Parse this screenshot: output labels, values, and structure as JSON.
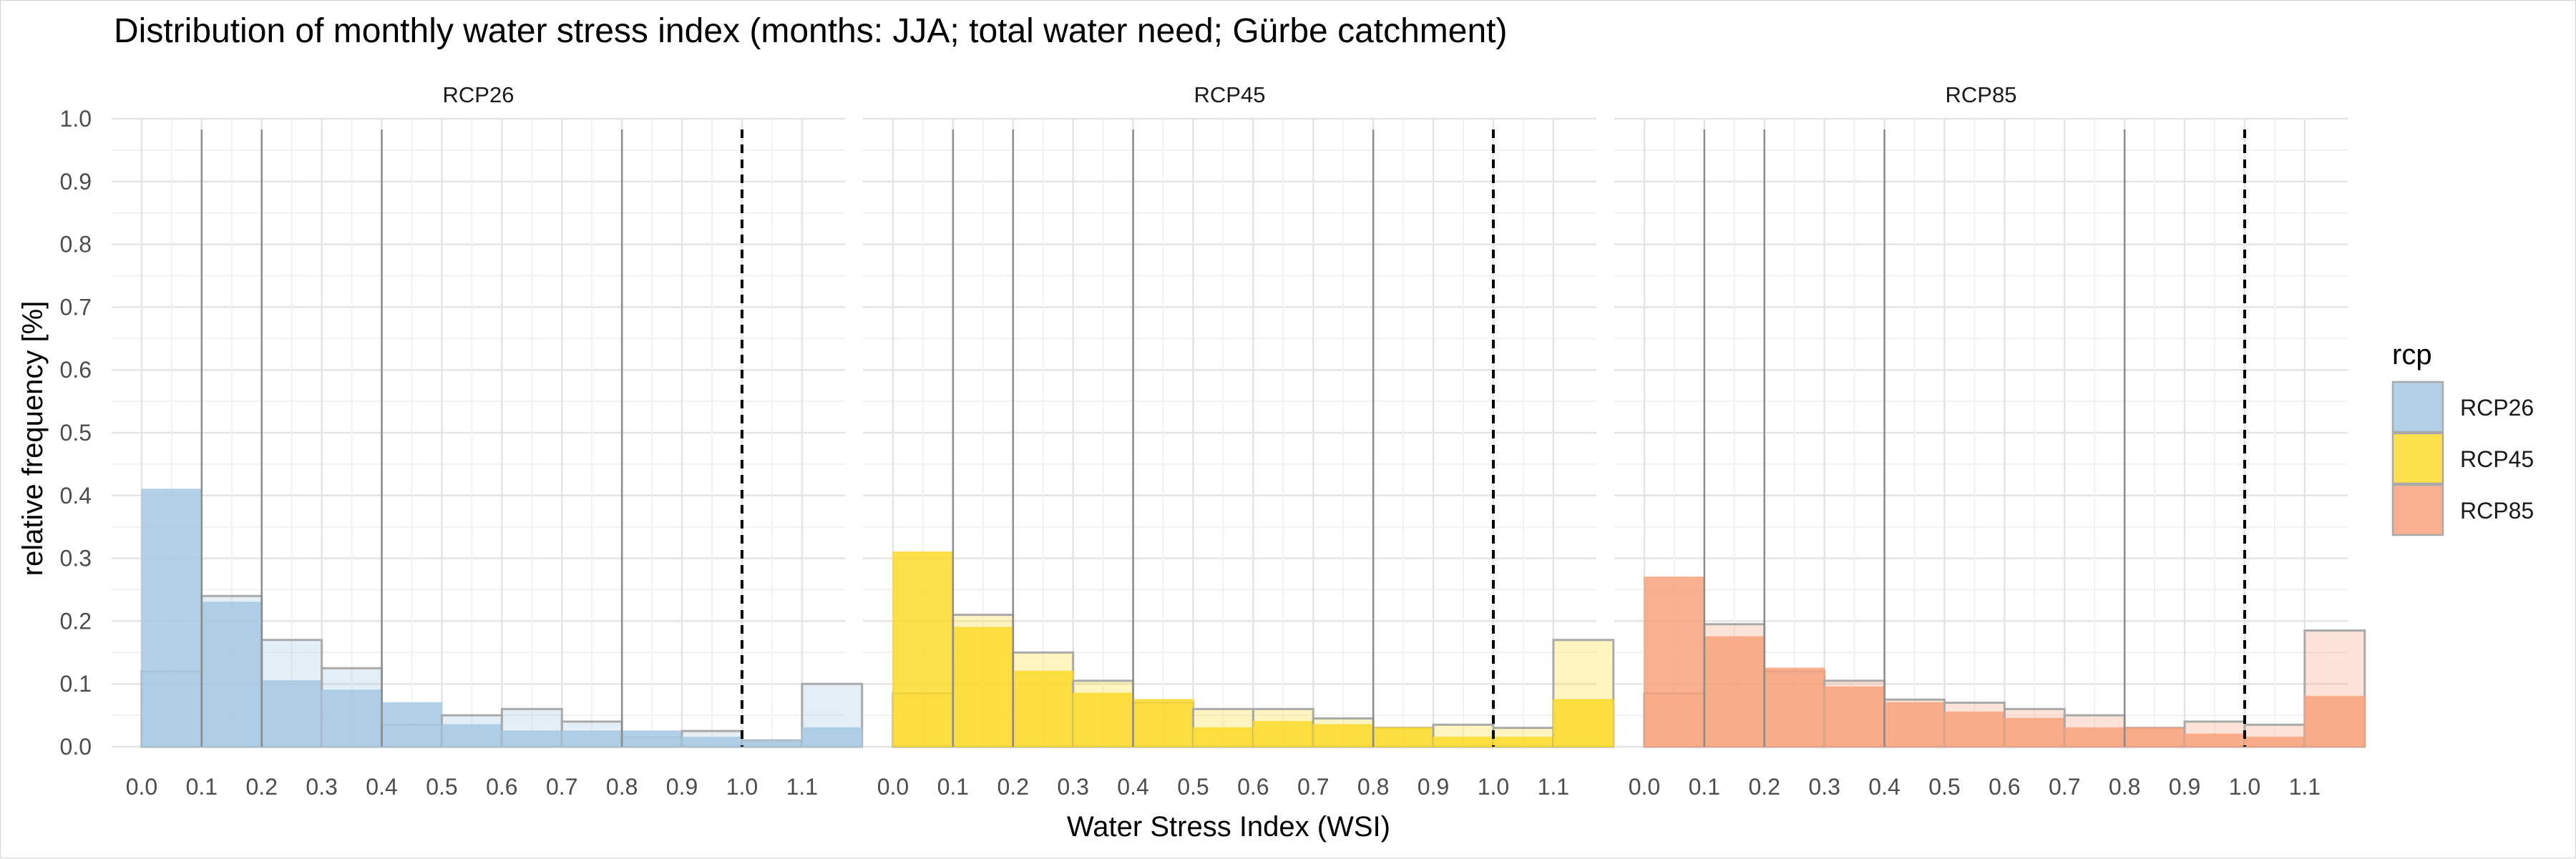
{
  "chart_data": {
    "type": "bar",
    "title": "Distribution of monthly water stress index (months: JJA; total water need; Gürbe catchment)",
    "xlabel": "Water Stress Index (WSI)",
    "ylabel": "relative frequency [%]",
    "xlim": [
      -0.05,
      1.15
    ],
    "ylim": [
      0,
      1.0
    ],
    "x_ticks": [
      "0.0",
      "0.1",
      "0.2",
      "0.3",
      "0.4",
      "0.5",
      "0.6",
      "0.7",
      "0.8",
      "0.9",
      "1.0",
      "1.1"
    ],
    "y_ticks": [
      "0.0",
      "0.1",
      "0.2",
      "0.3",
      "0.4",
      "0.5",
      "0.6",
      "0.7",
      "0.8",
      "0.9",
      "1.0"
    ],
    "bins": [
      0.0,
      0.1,
      0.2,
      0.3,
      0.4,
      0.5,
      0.6,
      0.7,
      0.8,
      0.9,
      1.0,
      1.1
    ],
    "vlines_solid": [
      0.1,
      0.2,
      0.4,
      0.8
    ],
    "vline_dashed": 1.0,
    "legend": {
      "title": "rcp",
      "placement": "right",
      "entries": [
        {
          "name": "RCP26",
          "color": "#a6c8e2"
        },
        {
          "name": "RCP45",
          "color": "#fcd92a"
        },
        {
          "name": "RCP85",
          "color": "#f7a27c"
        }
      ]
    },
    "facets": [
      {
        "label": "RCP26",
        "color": "#a6c8e2",
        "near_future": [
          0.41,
          0.23,
          0.105,
          0.09,
          0.07,
          0.035,
          0.025,
          0.025,
          0.025,
          0.015,
          0.01,
          0.03
        ],
        "far_future": [
          0.12,
          0.24,
          0.17,
          0.125,
          0.035,
          0.05,
          0.06,
          0.04,
          0.015,
          0.025,
          0.01,
          0.1
        ]
      },
      {
        "label": "RCP45",
        "color": "#fcd92a",
        "near_future": [
          0.31,
          0.19,
          0.12,
          0.085,
          0.075,
          0.03,
          0.04,
          0.035,
          0.03,
          0.015,
          0.015,
          0.075
        ],
        "far_future": [
          0.085,
          0.21,
          0.15,
          0.105,
          0.07,
          0.06,
          0.06,
          0.045,
          0.03,
          0.035,
          0.03,
          0.17
        ]
      },
      {
        "label": "RCP85",
        "color": "#f7a27c",
        "near_future": [
          0.27,
          0.175,
          0.125,
          0.095,
          0.07,
          0.055,
          0.045,
          0.03,
          0.03,
          0.02,
          0.015,
          0.08
        ],
        "far_future": [
          0.085,
          0.195,
          0.12,
          0.105,
          0.075,
          0.07,
          0.06,
          0.05,
          0.03,
          0.04,
          0.035,
          0.185
        ]
      }
    ]
  }
}
